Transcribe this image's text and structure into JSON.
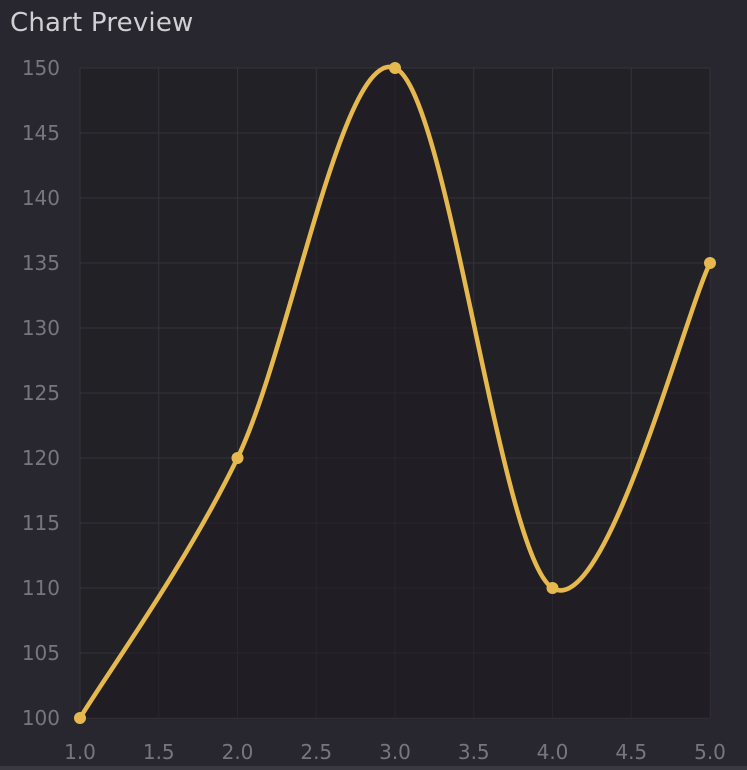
{
  "title": "Chart Preview",
  "chart_data": {
    "type": "line",
    "title": "",
    "xlabel": "",
    "ylabel": "",
    "x": [
      1.0,
      2.0,
      3.0,
      4.0,
      5.0
    ],
    "series": [
      {
        "values": [
          100,
          120,
          150,
          110,
          135
        ]
      }
    ],
    "xlim": [
      1.0,
      5.0
    ],
    "ylim": [
      100,
      150
    ],
    "xticks": [
      "1.0",
      "1.5",
      "2.0",
      "2.5",
      "3.0",
      "3.5",
      "4.0",
      "4.5",
      "5.0"
    ],
    "yticks": [
      "100",
      "105",
      "110",
      "115",
      "120",
      "125",
      "130",
      "135",
      "140",
      "145",
      "150"
    ],
    "grid": true,
    "smooth": true,
    "area_fill": true,
    "colors": {
      "line": "#e6b94f",
      "marker": "#e6b94f",
      "background": "#28272f",
      "plot_area": "#222126",
      "grid": "#34333b",
      "tick_label": "#77767e"
    }
  }
}
